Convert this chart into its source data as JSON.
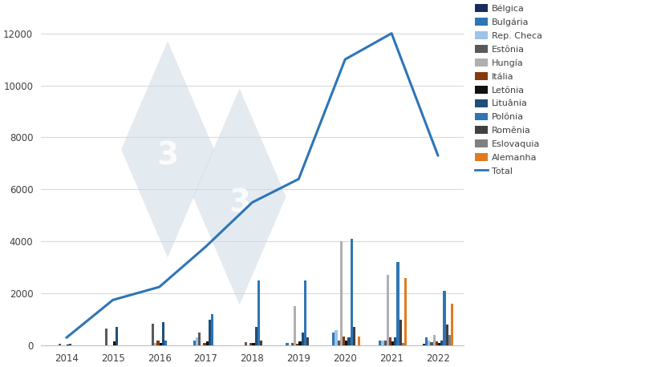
{
  "years": [
    2014,
    2015,
    2016,
    2017,
    2018,
    2019,
    2020,
    2021,
    2022
  ],
  "total": [
    300,
    1750,
    2250,
    3800,
    5500,
    6400,
    11000,
    12000,
    7300
  ],
  "countries": {
    "Bélgica": {
      "color": "#1a2b5e",
      "values": [
        10,
        0,
        0,
        0,
        0,
        0,
        0,
        0,
        50
      ]
    },
    "Bulgária": {
      "color": "#2e75b6",
      "values": [
        0,
        0,
        0,
        200,
        0,
        100,
        500,
        200,
        300
      ]
    },
    "Rep. Checa": {
      "color": "#9dc3e6",
      "values": [
        0,
        0,
        0,
        300,
        0,
        0,
        600,
        200,
        200
      ]
    },
    "Estônia": {
      "color": "#595959",
      "values": [
        50,
        650,
        850,
        500,
        130,
        100,
        200,
        200,
        120
      ]
    },
    "Hungía": {
      "color": "#b0b0b0",
      "values": [
        0,
        0,
        100,
        0,
        0,
        1500,
        4000,
        2700,
        400
      ]
    },
    "Itália": {
      "color": "#843c0c",
      "values": [
        0,
        0,
        200,
        100,
        100,
        50,
        350,
        300,
        150
      ]
    },
    "Letônia": {
      "color": "#111111",
      "values": [
        30,
        150,
        100,
        150,
        100,
        150,
        200,
        150,
        100
      ]
    },
    "Lituânia": {
      "color": "#1f4e79",
      "values": [
        50,
        700,
        900,
        1000,
        700,
        500,
        300,
        300,
        200
      ]
    },
    "Polônia": {
      "color": "#2e75b6",
      "values": [
        0,
        0,
        200,
        1200,
        2500,
        2500,
        4100,
        3200,
        2100
      ]
    },
    "Romênia": {
      "color": "#404040",
      "values": [
        0,
        0,
        0,
        0,
        200,
        300,
        700,
        1000,
        800
      ]
    },
    "Eslovaquia": {
      "color": "#808080",
      "values": [
        0,
        0,
        0,
        0,
        0,
        0,
        0,
        100,
        400
      ]
    },
    "Alemanha": {
      "color": "#e07b20",
      "values": [
        0,
        0,
        0,
        0,
        0,
        0,
        350,
        2600,
        1600
      ]
    }
  },
  "ylim": [
    0,
    13000
  ],
  "yticks": [
    0,
    2000,
    4000,
    6000,
    8000,
    10000,
    12000
  ],
  "total_color": "#2e75b6",
  "background_color": "#ffffff",
  "grid_color": "#d9d9d9",
  "bar_width": 0.055,
  "watermark_color": "#cdd9e5",
  "watermark_alpha": 0.55
}
